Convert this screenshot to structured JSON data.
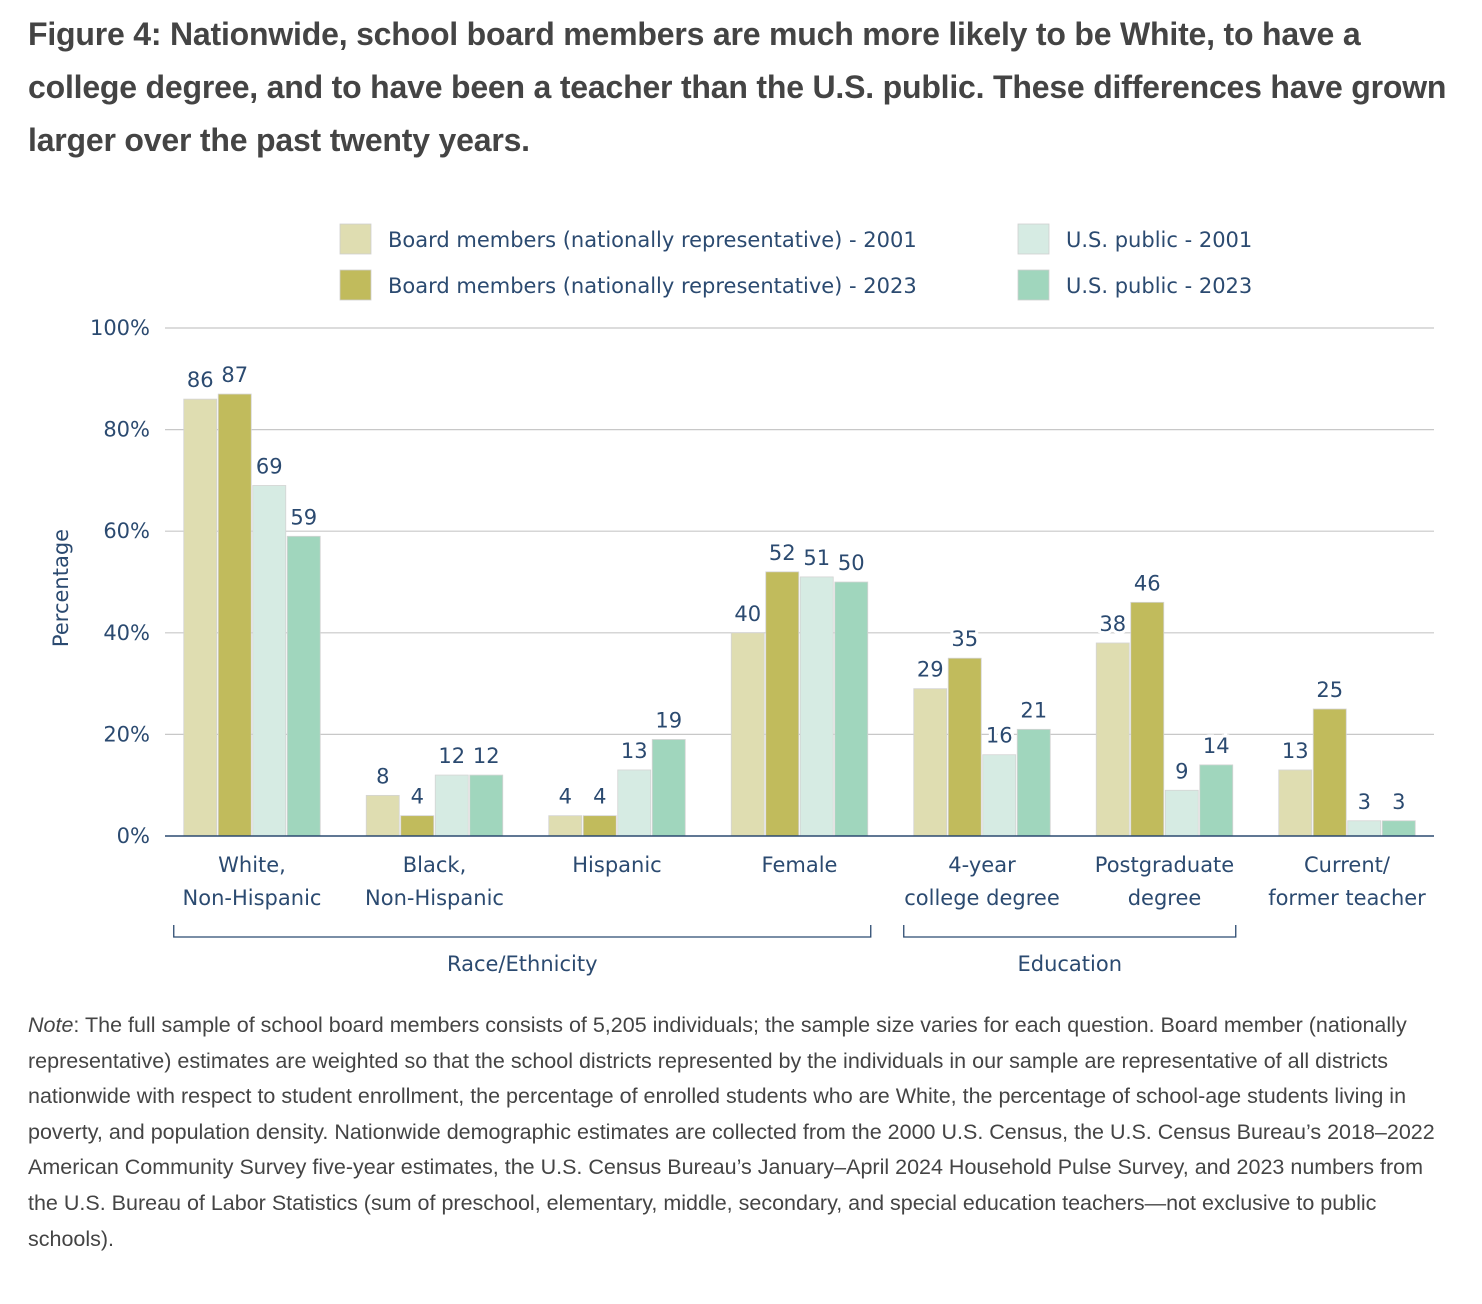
{
  "figure": {
    "title": "Figure 4: Nationwide, school board members are much more likely to be White, to have a college degree, and to have been a teacher than the U.S. public. These differences have grown larger over the past twenty years.",
    "note_label": "Note",
    "note_text": ": The full sample of school board members consists of 5,205 individuals; the sample size varies for each question. Board member (nationally representative) estimates are weighted so that the school districts represented by the individuals in our sample are representative of all districts nationwide with respect to student enrollment, the percentage of enrolled students who are White, the percentage of school-age students living in poverty, and population density. Nationwide demographic estimates are collected from the 2000 U.S. Census, the U.S. Census Bureau’s 2018–2022 American Community Survey five-year estimates, the U.S. Census Bureau’s January–April 2024 Household Pulse Survey, and 2023 numbers from the U.S. Bureau of Labor Statistics (sum of preschool, elementary, middle, secondary, and special education teachers—not exclusive to public schools)."
  },
  "chart_data": {
    "type": "bar",
    "title": "",
    "xlabel": "",
    "ylabel": "Percentage",
    "ylim": [
      0,
      100
    ],
    "yticks": [
      "0%",
      "20%",
      "40%",
      "60%",
      "80%",
      "100%"
    ],
    "ytick_values": [
      0,
      20,
      40,
      60,
      80,
      100
    ],
    "grid": true,
    "legend_position": "top",
    "categories": [
      [
        "White,",
        "Non-Hispanic"
      ],
      [
        "Black,",
        "Non-Hispanic"
      ],
      [
        "Hispanic"
      ],
      [
        "Female"
      ],
      [
        "4-year",
        "college degree"
      ],
      [
        "Postgraduate",
        "degree"
      ],
      [
        "Current/",
        "former teacher"
      ]
    ],
    "category_groups": [
      {
        "label": "Race/Ethnicity",
        "from": 0,
        "to": 3
      },
      {
        "label": "Education",
        "from": 4,
        "to": 5
      }
    ],
    "series": [
      {
        "name": "Board members (nationally representative) - 2001",
        "color": "#dfddb1",
        "values": [
          86,
          8,
          4,
          40,
          29,
          38,
          13
        ]
      },
      {
        "name": "Board members (nationally representative) - 2023",
        "color": "#c1bb5c",
        "values": [
          87,
          4,
          4,
          52,
          35,
          46,
          25
        ]
      },
      {
        "name": "U.S. public - 2001",
        "color": "#d6ebe3",
        "values": [
          69,
          12,
          13,
          51,
          16,
          9,
          3
        ]
      },
      {
        "name": "U.S. public - 2023",
        "color": "#a0d6bd",
        "values": [
          59,
          12,
          19,
          50,
          21,
          14,
          3
        ]
      }
    ],
    "colors": {
      "text": "#2b4a70",
      "axis": "#2b4a70",
      "gridline": "#c8c8c8"
    }
  }
}
